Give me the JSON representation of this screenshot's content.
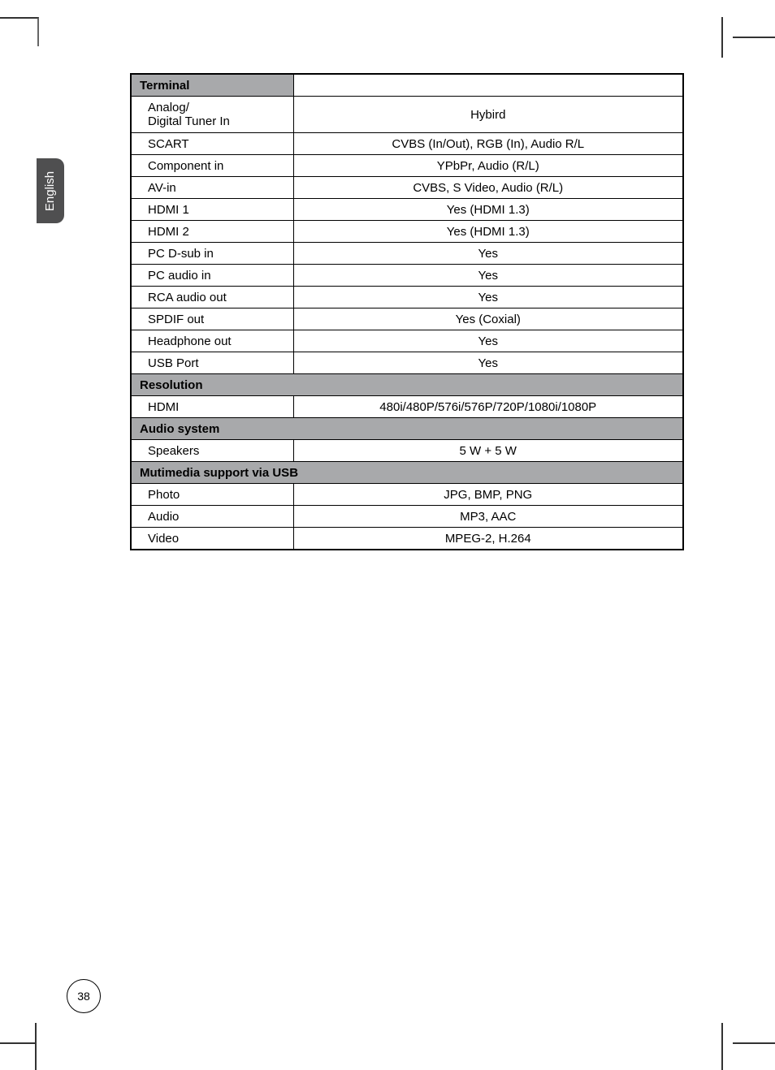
{
  "language_tab": "English",
  "page_number": "38",
  "columns": {
    "c1_width": 200,
    "c2_width": 480
  },
  "sections": {
    "terminal": {
      "header": "Terminal",
      "rows": [
        {
          "label": "Analog/\nDigital Tuner In",
          "value": "Hybird"
        },
        {
          "label": "SCART",
          "value": "CVBS (In/Out), RGB (In), Audio R/L"
        },
        {
          "label": "Component in",
          "value": "YPbPr, Audio (R/L)"
        },
        {
          "label": "AV-in",
          "value": "CVBS, S Video, Audio (R/L)"
        },
        {
          "label": "HDMI 1",
          "value": "Yes (HDMI 1.3)"
        },
        {
          "label": "HDMI 2",
          "value": "Yes (HDMI 1.3)"
        },
        {
          "label": "PC D-sub in",
          "value": "Yes"
        },
        {
          "label": "PC audio in",
          "value": "Yes"
        },
        {
          "label": "RCA audio out",
          "value": "Yes"
        },
        {
          "label": "SPDIF out",
          "value": "Yes (Coxial)"
        },
        {
          "label": "Headphone out",
          "value": "Yes"
        },
        {
          "label": "USB Port",
          "value": "Yes"
        }
      ]
    },
    "resolution": {
      "header": "Resolution",
      "rows": [
        {
          "label": "HDMI",
          "value": "480i/480P/576i/576P/720P/1080i/1080P"
        }
      ]
    },
    "audio": {
      "header": "Audio system",
      "rows": [
        {
          "label": "Speakers",
          "value": "5 W + 5 W"
        }
      ]
    },
    "multimedia": {
      "header": "Mutimedia support via USB",
      "rows": [
        {
          "label": "Photo",
          "value": "JPG, BMP, PNG"
        },
        {
          "label": "Audio",
          "value": "MP3, AAC"
        },
        {
          "label": "Video",
          "value": "MPEG-2, H.264"
        }
      ]
    }
  },
  "style": {
    "header_bg": "#a8a9ab",
    "border_color": "#000000",
    "font_size": 15,
    "page_bg": "#ffffff"
  }
}
